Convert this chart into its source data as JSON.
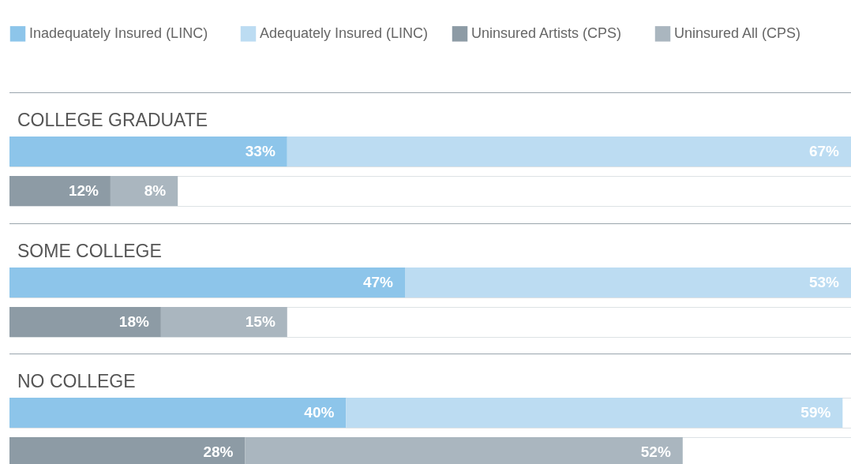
{
  "chart_data": [
    {
      "type": "bar",
      "orientation": "horizontal",
      "stacked": true,
      "title": "COLLEGE GRADUATE",
      "categories": [
        null
      ],
      "xlim": [
        0,
        100
      ],
      "tick_labels": false,
      "legend": "top left",
      "series": [
        {
          "name": "Inadequately Insured (LINC)",
          "color": "#8dc5ea",
          "values": [
            33
          ],
          "value_labels": [
            "33%"
          ]
        },
        {
          "name": "Adequately Insured (LINC)",
          "color": "#bcdcf2",
          "values": [
            67
          ],
          "value_labels": [
            "67%"
          ]
        }
      ]
    },
    {
      "type": "bar",
      "orientation": "horizontal",
      "stacked": true,
      "categories": [
        null
      ],
      "xlim": [
        0,
        100
      ],
      "tick_labels": false,
      "legend": "top right",
      "series": [
        {
          "name": "Uninsured Artists (CPS)",
          "color": "#8d9ba5",
          "values": [
            12
          ],
          "value_labels": [
            "12%"
          ]
        },
        {
          "name": "Uninsured All (CPS)",
          "color": "#aab6bf",
          "values": [
            8
          ],
          "value_labels": [
            "8%"
          ]
        }
      ]
    },
    {
      "type": "bar",
      "orientation": "horizontal",
      "stacked": true,
      "title": "SOME COLLEGE",
      "categories": [
        null
      ],
      "xlim": [
        0,
        100
      ],
      "tick_labels": false,
      "series": [
        {
          "color": "#8dc5ea",
          "values": [
            47
          ],
          "value_labels": [
            "47%"
          ]
        },
        {
          "color": "#bcdcf2",
          "values": [
            53
          ],
          "value_labels": [
            "53%"
          ]
        }
      ]
    },
    {
      "type": "bar",
      "orientation": "horizontal",
      "stacked": true,
      "categories": [
        null
      ],
      "xlim": [
        0,
        100
      ],
      "tick_labels": false,
      "series": [
        {
          "color": "#8d9ba5",
          "values": [
            18
          ],
          "value_labels": [
            "18%"
          ]
        },
        {
          "color": "#aab6bf",
          "values": [
            15
          ],
          "value_labels": [
            "15%"
          ]
        }
      ]
    },
    {
      "type": "bar",
      "orientation": "horizontal",
      "stacked": true,
      "title": "NO COLLEGE",
      "categories": [
        null
      ],
      "xlim": [
        0,
        100
      ],
      "tick_labels": false,
      "series": [
        {
          "color": "#8dc5ea",
          "values": [
            40
          ],
          "value_labels": [
            "40%"
          ]
        },
        {
          "color": "#bcdcf2",
          "values": [
            59
          ],
          "value_labels": [
            "59%"
          ]
        }
      ]
    },
    {
      "type": "bar",
      "orientation": "horizontal",
      "stacked": true,
      "categories": [
        null
      ],
      "xlim": [
        0,
        100
      ],
      "tick_labels": false,
      "series": [
        {
          "color": "#8d9ba5",
          "values": [
            28
          ],
          "value_labels": [
            "28%"
          ]
        },
        {
          "color": "#aab6bf",
          "values": [
            52
          ],
          "value_labels": [
            "52%"
          ]
        }
      ]
    }
  ]
}
